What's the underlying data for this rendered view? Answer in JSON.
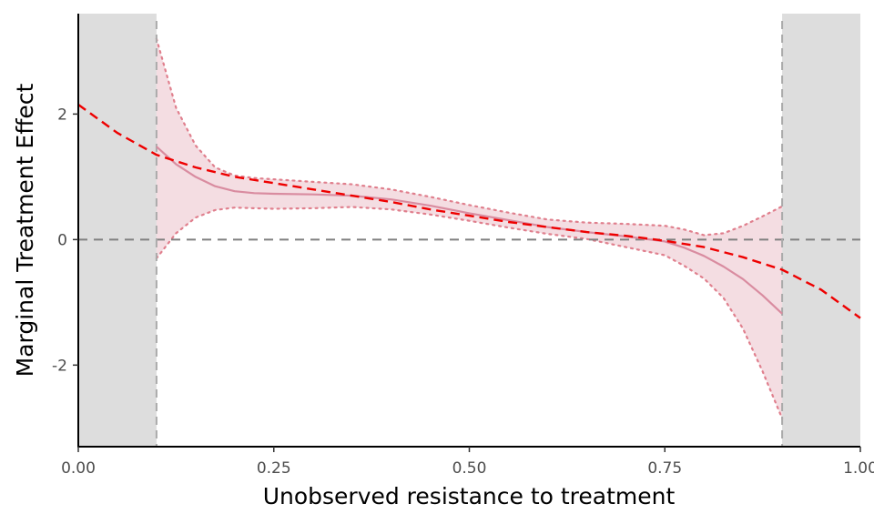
{
  "chart_data": {
    "type": "line",
    "title": "",
    "xlabel": "Unobserved resistance to treatment",
    "ylabel": "Marginal Treatment Effect",
    "xlim": [
      0,
      1
    ],
    "ylim": [
      -3.3,
      3.6
    ],
    "x_ticks": [
      0,
      0.25,
      0.5,
      0.75,
      1
    ],
    "x_tick_labels": [
      "0.00",
      "0.25",
      "0.50",
      "0.75",
      "1.00"
    ],
    "y_ticks": [
      -2,
      0,
      2
    ],
    "y_tick_labels": [
      "-2",
      "0",
      "2"
    ],
    "grid": false,
    "legend": "none",
    "reference_line_y": 0,
    "support_bounds": [
      0.1,
      0.9
    ],
    "excluded_regions": [
      [
        0,
        0.1
      ],
      [
        0.9,
        1
      ]
    ],
    "series": [
      {
        "style": "solid",
        "color": "#d98ca0",
        "x": [
          0.1,
          0.125,
          0.15,
          0.175,
          0.2,
          0.225,
          0.25,
          0.3,
          0.35,
          0.4,
          0.45,
          0.5,
          0.55,
          0.6,
          0.65,
          0.7,
          0.75,
          0.775,
          0.8,
          0.825,
          0.85,
          0.875,
          0.9
        ],
        "y": [
          1.48,
          1.2,
          1.0,
          0.85,
          0.77,
          0.74,
          0.73,
          0.72,
          0.7,
          0.64,
          0.54,
          0.42,
          0.31,
          0.2,
          0.12,
          0.05,
          -0.03,
          -0.13,
          -0.26,
          -0.43,
          -0.63,
          -0.89,
          -1.18
        ]
      },
      {
        "style": "dashed",
        "color": "#ee0000",
        "x": [
          0,
          0.05,
          0.1,
          0.15,
          0.2,
          0.25,
          0.3,
          0.35,
          0.4,
          0.45,
          0.5,
          0.55,
          0.6,
          0.65,
          0.7,
          0.75,
          0.8,
          0.85,
          0.9,
          0.95,
          1.0
        ],
        "y": [
          2.15,
          1.7,
          1.35,
          1.15,
          1.0,
          0.9,
          0.8,
          0.7,
          0.6,
          0.48,
          0.38,
          0.28,
          0.2,
          0.12,
          0.06,
          -0.02,
          -0.12,
          -0.28,
          -0.48,
          -0.8,
          -1.25
        ]
      }
    ],
    "confidence_band": {
      "color": "#f4dde2",
      "edge_color": "#e07f8d",
      "x": [
        0.1,
        0.125,
        0.15,
        0.175,
        0.2,
        0.225,
        0.25,
        0.3,
        0.35,
        0.4,
        0.45,
        0.5,
        0.55,
        0.6,
        0.65,
        0.7,
        0.75,
        0.775,
        0.8,
        0.825,
        0.85,
        0.875,
        0.9
      ],
      "upper": [
        3.2,
        2.1,
        1.5,
        1.15,
        1.02,
        0.98,
        0.96,
        0.92,
        0.88,
        0.8,
        0.68,
        0.55,
        0.43,
        0.32,
        0.27,
        0.25,
        0.22,
        0.16,
        0.07,
        0.1,
        0.22,
        0.37,
        0.53
      ],
      "lower": [
        -0.3,
        0.1,
        0.35,
        0.47,
        0.51,
        0.5,
        0.49,
        0.5,
        0.52,
        0.48,
        0.4,
        0.3,
        0.19,
        0.09,
        0.01,
        -0.12,
        -0.25,
        -0.42,
        -0.62,
        -0.93,
        -1.42,
        -2.1,
        -2.85
      ]
    }
  }
}
